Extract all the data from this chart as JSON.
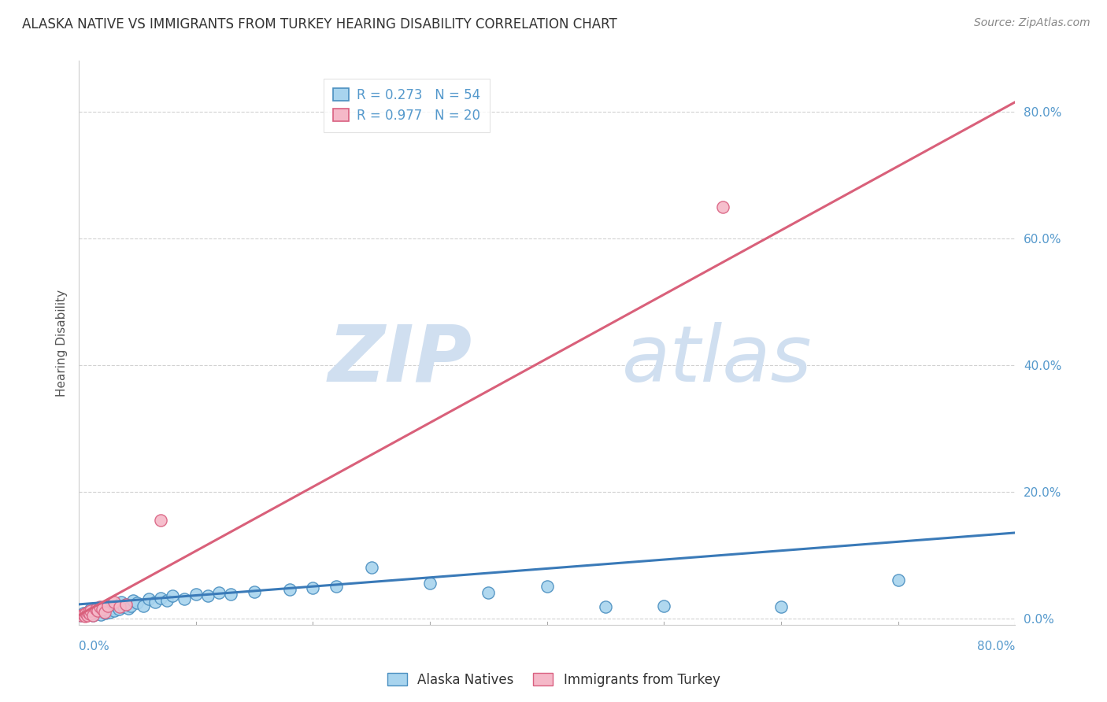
{
  "title": "ALASKA NATIVE VS IMMIGRANTS FROM TURKEY HEARING DISABILITY CORRELATION CHART",
  "source": "Source: ZipAtlas.com",
  "ylabel": "Hearing Disability",
  "xlim": [
    0.0,
    0.8
  ],
  "ylim": [
    -0.01,
    0.88
  ],
  "watermark_zip": "ZIP",
  "watermark_atlas": "atlas",
  "legend_blue_r": "R = 0.273",
  "legend_blue_n": "N = 54",
  "legend_pink_r": "R = 0.977",
  "legend_pink_n": "N = 20",
  "blue_face": "#a8d4ee",
  "blue_edge": "#4a8fc0",
  "pink_face": "#f5b8c8",
  "pink_edge": "#d96080",
  "blue_line_color": "#3a7ab8",
  "pink_line_color": "#d9607a",
  "blue_scatter": [
    [
      0.002,
      0.005
    ],
    [
      0.004,
      0.008
    ],
    [
      0.006,
      0.004
    ],
    [
      0.007,
      0.01
    ],
    [
      0.008,
      0.006
    ],
    [
      0.009,
      0.012
    ],
    [
      0.01,
      0.008
    ],
    [
      0.01,
      0.015
    ],
    [
      0.012,
      0.005
    ],
    [
      0.013,
      0.01
    ],
    [
      0.014,
      0.012
    ],
    [
      0.015,
      0.008
    ],
    [
      0.016,
      0.015
    ],
    [
      0.018,
      0.01
    ],
    [
      0.019,
      0.006
    ],
    [
      0.02,
      0.012
    ],
    [
      0.022,
      0.018
    ],
    [
      0.023,
      0.008
    ],
    [
      0.025,
      0.014
    ],
    [
      0.026,
      0.01
    ],
    [
      0.028,
      0.016
    ],
    [
      0.03,
      0.012
    ],
    [
      0.032,
      0.02
    ],
    [
      0.034,
      0.015
    ],
    [
      0.036,
      0.025
    ],
    [
      0.038,
      0.018
    ],
    [
      0.04,
      0.022
    ],
    [
      0.042,
      0.016
    ],
    [
      0.044,
      0.02
    ],
    [
      0.046,
      0.028
    ],
    [
      0.05,
      0.024
    ],
    [
      0.055,
      0.02
    ],
    [
      0.06,
      0.03
    ],
    [
      0.065,
      0.025
    ],
    [
      0.07,
      0.032
    ],
    [
      0.075,
      0.028
    ],
    [
      0.08,
      0.035
    ],
    [
      0.09,
      0.03
    ],
    [
      0.1,
      0.038
    ],
    [
      0.11,
      0.035
    ],
    [
      0.12,
      0.04
    ],
    [
      0.13,
      0.038
    ],
    [
      0.15,
      0.042
    ],
    [
      0.18,
      0.045
    ],
    [
      0.2,
      0.048
    ],
    [
      0.22,
      0.05
    ],
    [
      0.25,
      0.08
    ],
    [
      0.3,
      0.055
    ],
    [
      0.35,
      0.04
    ],
    [
      0.4,
      0.05
    ],
    [
      0.45,
      0.018
    ],
    [
      0.5,
      0.02
    ],
    [
      0.6,
      0.018
    ],
    [
      0.7,
      0.06
    ]
  ],
  "pink_scatter": [
    [
      0.002,
      0.004
    ],
    [
      0.004,
      0.006
    ],
    [
      0.005,
      0.003
    ],
    [
      0.006,
      0.008
    ],
    [
      0.007,
      0.005
    ],
    [
      0.008,
      0.01
    ],
    [
      0.009,
      0.007
    ],
    [
      0.01,
      0.012
    ],
    [
      0.012,
      0.005
    ],
    [
      0.015,
      0.015
    ],
    [
      0.016,
      0.012
    ],
    [
      0.018,
      0.018
    ],
    [
      0.02,
      0.015
    ],
    [
      0.022,
      0.01
    ],
    [
      0.025,
      0.02
    ],
    [
      0.03,
      0.025
    ],
    [
      0.035,
      0.018
    ],
    [
      0.04,
      0.022
    ],
    [
      0.07,
      0.155
    ],
    [
      0.55,
      0.65
    ]
  ],
  "blue_trendline_x": [
    0.0,
    0.8
  ],
  "blue_trendline_y": [
    0.022,
    0.135
  ],
  "pink_trendline_x": [
    0.0,
    0.8
  ],
  "pink_trendline_y": [
    0.005,
    0.815
  ],
  "background_color": "#ffffff",
  "grid_color": "#cccccc",
  "ytick_positions": [
    0.0,
    0.2,
    0.4,
    0.6,
    0.8
  ],
  "ytick_labels": [
    "0.0%",
    "20.0%",
    "40.0%",
    "60.0%",
    "80.0%"
  ],
  "xtick_left_label": "0.0%",
  "xtick_right_label": "80.0%",
  "title_fontsize": 12,
  "source_fontsize": 10,
  "axis_label_fontsize": 11,
  "tick_fontsize": 11,
  "legend_fontsize": 12,
  "marker_size": 120,
  "tick_label_color": "#5599cc",
  "axis_label_color": "#555555",
  "legend_label_color": "#5599cc"
}
